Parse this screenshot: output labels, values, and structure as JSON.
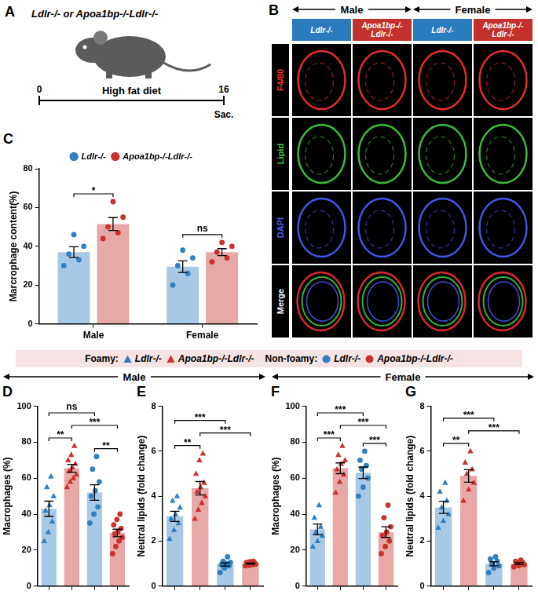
{
  "panel_letters": {
    "schematic": "A",
    "images": "B",
    "charts": [
      "C",
      "D",
      "E",
      "F",
      "G"
    ]
  },
  "schematic": {
    "title": "Ldlr-/- or Apoa1bp-/-Ldlr-/-",
    "label": "High fat diet",
    "timeline": [
      0,
      16
    ],
    "end_label": "Sac."
  },
  "images": {
    "sex_heads": [
      "Male",
      "Female"
    ],
    "columns": [
      "Ldlr-/-",
      "Apoa1bp-/-Ldlr-/-",
      "Ldlr-/-",
      "Apoa1bp-/-Ldlr-/-"
    ],
    "column_colors": [
      "#2b7bbf",
      "#c4302b",
      "#2b7bbf",
      "#c4302b"
    ],
    "rows": [
      {
        "label": "F4/80",
        "color": "#ff3030"
      },
      {
        "label": "Lipid",
        "color": "#3fd13f"
      },
      {
        "label": "DAPI",
        "color": "#4a5cff"
      },
      {
        "label": "Merge",
        "color": "#ffffff"
      }
    ]
  },
  "shared_legend": [
    {
      "title": "Foamy:",
      "marker": "triangle",
      "items": [
        {
          "label": "Ldlr-/-",
          "color": "#2f7fc1"
        },
        {
          "label": "Apoa1bp-/-Ldlr-/-",
          "color": "#c8322c"
        }
      ]
    },
    {
      "title": "Non-foamy:",
      "marker": "circle",
      "items": [
        {
          "label": "Ldlr-/-",
          "color": "#2f7fc1"
        },
        {
          "label": "Apoa1bp-/-Ldlr-/-",
          "color": "#c8322c"
        }
      ]
    }
  ],
  "bottom_heads": [
    "Male",
    "Female"
  ],
  "chart_data": [
    {
      "type": "bar",
      "y_label": "Marcrophage content(%)",
      "categories": [
        "Male",
        "Female"
      ],
      "series": [
        {
          "name": "Ldlr-/-",
          "color": "#2f7fc1",
          "marker": "circle",
          "values": [
            37,
            29.5
          ],
          "errors": [
            2.8,
            3.0
          ],
          "points": [
            [
              30,
              33,
              36,
              40,
              46
            ],
            [
              20,
              26,
              30,
              34,
              38
            ]
          ]
        },
        {
          "name": "Apoa1bp-/-Ldlr-/-",
          "color": "#c8322c",
          "marker": "circle",
          "values": [
            51.5,
            37
          ],
          "errors": [
            3.3,
            1.8
          ],
          "points": [
            [
              44,
              47,
              50,
              55,
              63
            ],
            [
              32,
              34,
              37,
              40,
              42
            ]
          ]
        }
      ],
      "annotations": [
        {
          "text": "*",
          "category": 0,
          "from": 0,
          "to": 1
        },
        {
          "text": "ns",
          "category": 1,
          "from": 0,
          "to": 1
        }
      ],
      "ylim": [
        0,
        80
      ],
      "yticks": [
        0,
        20,
        40,
        60,
        80
      ],
      "grid": false,
      "legend": "top"
    },
    {
      "type": "bar",
      "y_label": "Macrophages (%)",
      "categories": [
        null,
        null,
        null,
        null
      ],
      "series": [
        {
          "name": "Ldlr-/-",
          "color": "#2f7fc1",
          "marker": "triangle",
          "values": [
            43,
            null,
            null,
            null
          ],
          "errors": [
            4.2,
            null,
            null,
            null
          ],
          "points": [
            [
              25,
              30,
              36,
              42,
              45,
              50,
              55,
              61
            ],
            null,
            null,
            null
          ]
        },
        {
          "name": "Apoa1bp-/-Ldlr-/-",
          "color": "#c8322c",
          "marker": "triangle",
          "values": [
            null,
            65.5,
            null,
            null
          ],
          "errors": [
            null,
            2.2,
            null,
            null
          ],
          "points": [
            null,
            [
              55,
              58,
              60,
              62,
              64,
              66,
              68,
              70,
              73,
              78
            ],
            null,
            null
          ]
        },
        {
          "name": "Ldlr-/-",
          "color": "#2f7fc1",
          "marker": "circle",
          "values": [
            null,
            null,
            52,
            null
          ],
          "errors": [
            null,
            null,
            4.3,
            null
          ],
          "points": [
            null,
            null,
            [
              35,
              40,
              44,
              50,
              53,
              58,
              65,
              72
            ],
            null
          ]
        },
        {
          "name": "Apoa1bp-/-Ldlr-/-",
          "color": "#c8322c",
          "marker": "circle",
          "values": [
            null,
            null,
            null,
            29.5
          ],
          "errors": [
            null,
            null,
            null,
            2.1
          ],
          "points": [
            null,
            null,
            null,
            [
              18,
              22,
              25,
              27,
              29,
              30,
              32,
              34,
              37,
              40
            ]
          ]
        }
      ],
      "annotations": [
        {
          "text": "**",
          "from": 0,
          "to": 1
        },
        {
          "text": "ns",
          "from": 0,
          "to": 2
        },
        {
          "text": "***",
          "from": 1,
          "to": 3
        },
        {
          "text": "**",
          "from": 2,
          "to": 3
        }
      ],
      "ylim": [
        0,
        100
      ],
      "yticks": [
        0,
        20,
        40,
        60,
        80,
        100
      ],
      "grid": false,
      "tick_labels": "y"
    },
    {
      "type": "bar",
      "y_label": "Neutral lipids (fold change)",
      "categories": [
        null,
        null,
        null,
        null
      ],
      "series": [
        {
          "name": "Ldlr-/-",
          "color": "#2f7fc1",
          "marker": "triangle",
          "values": [
            3.1,
            null,
            null,
            null
          ],
          "errors": [
            0.23,
            null,
            null,
            null
          ],
          "points": [
            [
              2.1,
              2.5,
              2.8,
              3.0,
              3.2,
              3.5,
              3.8,
              4.0
            ],
            null,
            null,
            null
          ]
        },
        {
          "name": "Apoa1bp-/-Ldlr-/-",
          "color": "#c8322c",
          "marker": "triangle",
          "values": [
            null,
            4.35,
            null,
            null
          ],
          "errors": [
            null,
            0.3,
            null,
            null
          ],
          "points": [
            null,
            [
              3.0,
              3.4,
              3.7,
              4.0,
              4.2,
              4.4,
              4.6,
              5.0,
              5.6,
              5.9
            ],
            null,
            null
          ]
        },
        {
          "name": "Ldlr-/-",
          "color": "#2f7fc1",
          "marker": "circle",
          "values": [
            null,
            null,
            0.96,
            null
          ],
          "errors": [
            null,
            null,
            0.07,
            null
          ],
          "points": [
            null,
            null,
            [
              0.6,
              0.8,
              0.9,
              0.95,
              1.0,
              1.05,
              1.1,
              1.3
            ],
            null
          ]
        },
        {
          "name": "Apoa1bp-/-Ldlr-/-",
          "color": "#c8322c",
          "marker": "circle",
          "values": [
            null,
            null,
            null,
            1.0
          ],
          "errors": [
            null,
            null,
            null,
            0.02
          ],
          "points": [
            null,
            null,
            null,
            [
              0.9,
              0.92,
              0.95,
              0.98,
              1.0,
              1.0,
              1.02,
              1.05,
              1.08,
              1.1
            ]
          ]
        }
      ],
      "annotations": [
        {
          "text": "**",
          "from": 0,
          "to": 1
        },
        {
          "text": "***",
          "from": 0,
          "to": 2
        },
        {
          "text": "***",
          "from": 1,
          "to": 3
        }
      ],
      "ylim": [
        0,
        8
      ],
      "yticks": [
        0,
        2,
        4,
        6,
        8
      ],
      "grid": false,
      "tick_labels": "y"
    },
    {
      "type": "bar",
      "y_label": "Macrophages (%)",
      "categories": [
        null,
        null,
        null,
        null
      ],
      "series": [
        {
          "name": "Ldlr-/-",
          "color": "#2f7fc1",
          "marker": "triangle",
          "values": [
            31.5,
            null,
            null,
            null
          ],
          "errors": [
            3.0,
            null,
            null,
            null
          ],
          "points": [
            [
              22,
              25,
              28,
              30,
              33,
              38,
              45
            ],
            null,
            null,
            null
          ]
        },
        {
          "name": "Apoa1bp-/-Ldlr-/-",
          "color": "#c8322c",
          "marker": "triangle",
          "values": [
            null,
            65.5,
            null,
            null
          ],
          "errors": [
            null,
            3.0,
            null,
            null
          ],
          "points": [
            null,
            [
              52,
              58,
              62,
              65,
              68,
              70,
              73,
              78
            ],
            null,
            null
          ]
        },
        {
          "name": "Ldlr-/-",
          "color": "#2f7fc1",
          "marker": "circle",
          "values": [
            null,
            null,
            63,
            null
          ],
          "errors": [
            null,
            null,
            3.2,
            null
          ],
          "points": [
            null,
            null,
            [
              50,
              55,
              60,
              65,
              67,
              70,
              75
            ],
            null
          ]
        },
        {
          "name": "Apoa1bp-/-Ldlr-/-",
          "color": "#c8322c",
          "marker": "circle",
          "values": [
            null,
            null,
            null,
            30
          ],
          "errors": [
            null,
            null,
            null,
            3.0
          ],
          "points": [
            null,
            null,
            null,
            [
              18,
              22,
              25,
              28,
              30,
              33,
              38,
              45
            ]
          ]
        }
      ],
      "annotations": [
        {
          "text": "***",
          "from": 0,
          "to": 1
        },
        {
          "text": "***",
          "from": 0,
          "to": 2
        },
        {
          "text": "***",
          "from": 1,
          "to": 3
        },
        {
          "text": "***",
          "from": 2,
          "to": 3
        }
      ],
      "ylim": [
        0,
        100
      ],
      "yticks": [
        0,
        20,
        40,
        60,
        80,
        100
      ],
      "grid": false,
      "tick_labels": "y"
    },
    {
      "type": "bar",
      "y_label": "Neutral lipids (fold change)",
      "categories": [
        null,
        null,
        null,
        null
      ],
      "series": [
        {
          "name": "Ldlr-/-",
          "color": "#2f7fc1",
          "marker": "triangle",
          "values": [
            3.5,
            null,
            null,
            null
          ],
          "errors": [
            0.27,
            null,
            null,
            null
          ],
          "points": [
            [
              2.6,
              2.9,
              3.2,
              3.5,
              3.8,
              4.2,
              4.6
            ],
            null,
            null,
            null
          ]
        },
        {
          "name": "Apoa1bp-/-Ldlr-/-",
          "color": "#c8322c",
          "marker": "triangle",
          "values": [
            null,
            4.9,
            null,
            null
          ],
          "errors": [
            null,
            0.28,
            null,
            null
          ],
          "points": [
            null,
            [
              3.8,
              4.3,
              4.6,
              5.0,
              5.2,
              5.5,
              6.0
            ],
            null,
            null
          ]
        },
        {
          "name": "Ldlr-/-",
          "color": "#2f7fc1",
          "marker": "circle",
          "values": [
            null,
            null,
            0.99,
            null
          ],
          "errors": [
            null,
            null,
            0.09,
            null
          ],
          "points": [
            null,
            null,
            [
              0.6,
              0.8,
              0.9,
              1.0,
              1.1,
              1.2,
              1.3
            ],
            null
          ]
        },
        {
          "name": "Apoa1bp-/-Ldlr-/-",
          "color": "#c8322c",
          "marker": "circle",
          "values": [
            null,
            null,
            null,
            1.0
          ],
          "errors": [
            null,
            null,
            null,
            0.04
          ],
          "points": [
            null,
            null,
            null,
            [
              0.85,
              0.9,
              0.95,
              1.0,
              1.05,
              1.1,
              1.15
            ]
          ]
        }
      ],
      "annotations": [
        {
          "text": "**",
          "from": 0,
          "to": 1
        },
        {
          "text": "***",
          "from": 0,
          "to": 2
        },
        {
          "text": "***",
          "from": 1,
          "to": 3
        }
      ],
      "ylim": [
        0,
        8
      ],
      "yticks": [
        0,
        2,
        4,
        6,
        8
      ],
      "grid": false,
      "tick_labels": "y"
    }
  ]
}
